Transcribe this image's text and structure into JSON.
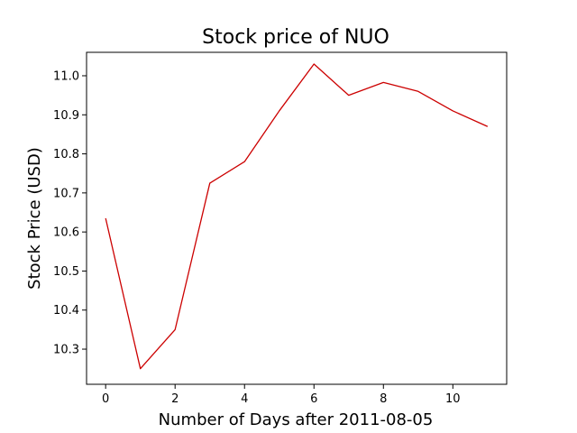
{
  "chart_data": {
    "type": "line",
    "title": "Stock price of NUO",
    "xlabel": "Number of Days after 2011-08-05",
    "ylabel": "Stock Price (USD)",
    "xlim": [
      -0.55,
      11.55
    ],
    "ylim": [
      10.21,
      11.06
    ],
    "xticks": [
      0,
      2,
      4,
      6,
      8,
      10
    ],
    "yticks": [
      10.3,
      10.4,
      10.5,
      10.6,
      10.7,
      10.8,
      10.9,
      11.0
    ],
    "xtick_labels": [
      "0",
      "2",
      "4",
      "6",
      "8",
      "10"
    ],
    "ytick_labels": [
      "10.3",
      "10.4",
      "10.5",
      "10.6",
      "10.7",
      "10.8",
      "10.9",
      "11.0"
    ],
    "grid": false,
    "legend": "none",
    "series": [
      {
        "color": "#cc0000",
        "x": [
          0,
          1,
          2,
          3,
          4,
          5,
          6,
          7,
          8,
          9,
          10,
          11
        ],
        "y": [
          10.635,
          10.25,
          10.35,
          10.725,
          10.78,
          10.91,
          11.03,
          10.95,
          10.983,
          10.96,
          10.91,
          10.87
        ]
      }
    ]
  }
}
